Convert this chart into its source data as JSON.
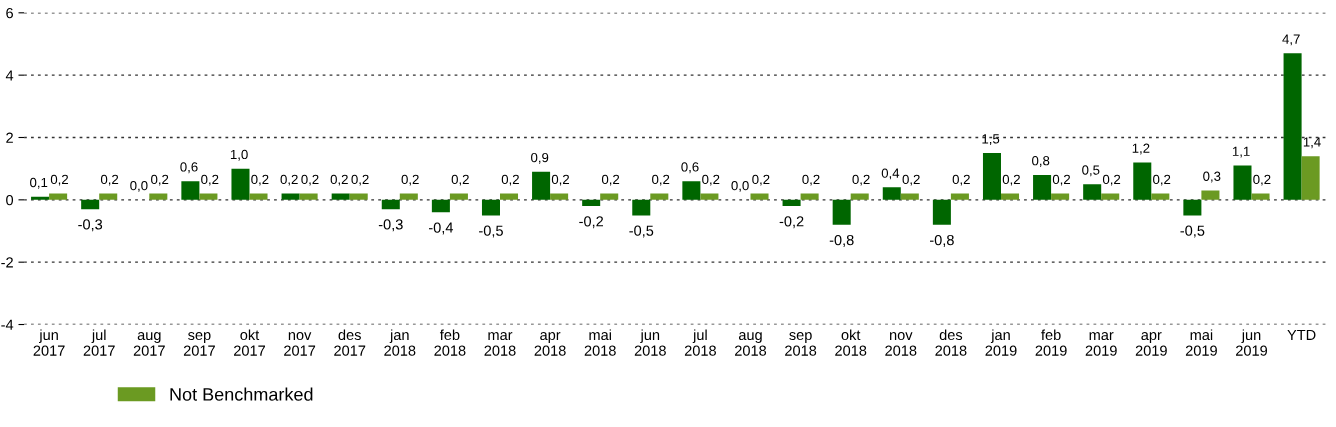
{
  "chart_data": {
    "type": "bar",
    "categories": [
      "jun\n2017",
      "jul\n2017",
      "aug\n2017",
      "sep\n2017",
      "okt\n2017",
      "nov\n2017",
      "des\n2017",
      "jan\n2018",
      "feb\n2018",
      "mar\n2018",
      "apr\n2018",
      "mai\n2018",
      "jun\n2018",
      "jul\n2018",
      "aug\n2018",
      "sep\n2018",
      "okt\n2018",
      "nov\n2018",
      "des\n2018",
      "jan\n2019",
      "feb\n2019",
      "mar\n2019",
      "apr\n2019",
      "mai\n2019",
      "jun\n2019",
      "YTD"
    ],
    "series": [
      {
        "color": "#006600",
        "values": [
          0.1,
          -0.3,
          0.0,
          0.6,
          1.0,
          0.2,
          0.2,
          -0.3,
          -0.4,
          -0.5,
          0.9,
          -0.2,
          -0.5,
          0.6,
          0.0,
          -0.2,
          -0.8,
          0.4,
          -0.8,
          1.5,
          0.8,
          0.5,
          1.2,
          -0.5,
          1.1,
          4.7
        ],
        "value_labels": [
          "0,1",
          "-0,3",
          "0,0",
          "0,6",
          "1,0",
          "0,2",
          "0,2",
          "-0,3",
          "-0,4",
          "-0,5",
          "0,9",
          "-0,2",
          "-0,5",
          "0,6",
          "0,0",
          "-0,2",
          "-0,8",
          "0,4",
          "-0,8",
          "1,5",
          "0,8",
          "0,5",
          "1,2",
          "-0,5",
          "1,1",
          "4,7"
        ]
      },
      {
        "name": "Not Benchmarked",
        "color": "#6b9a22",
        "values": [
          0.2,
          0.2,
          0.2,
          0.2,
          0.2,
          0.2,
          0.2,
          0.2,
          0.2,
          0.2,
          0.2,
          0.2,
          0.2,
          0.2,
          0.2,
          0.2,
          0.2,
          0.2,
          0.2,
          0.2,
          0.2,
          0.2,
          0.2,
          0.3,
          0.2,
          1.4
        ],
        "value_labels": [
          "0,2",
          "0,2",
          "0,2",
          "0,2",
          "0,2",
          "0,2",
          "0,2",
          "0,2",
          "0,2",
          "0,2",
          "0,2",
          "0,2",
          "0,2",
          "0,2",
          "0,2",
          "0,2",
          "0,2",
          "0,2",
          "0,2",
          "0,2",
          "0,2",
          "0,2",
          "0,2",
          "0,3",
          "0,2",
          "1,4"
        ]
      }
    ],
    "ylim": [
      -4,
      6
    ],
    "yticks": [
      -4,
      -2,
      0,
      2,
      4,
      6
    ],
    "grid": "y",
    "legend": "bottom"
  }
}
